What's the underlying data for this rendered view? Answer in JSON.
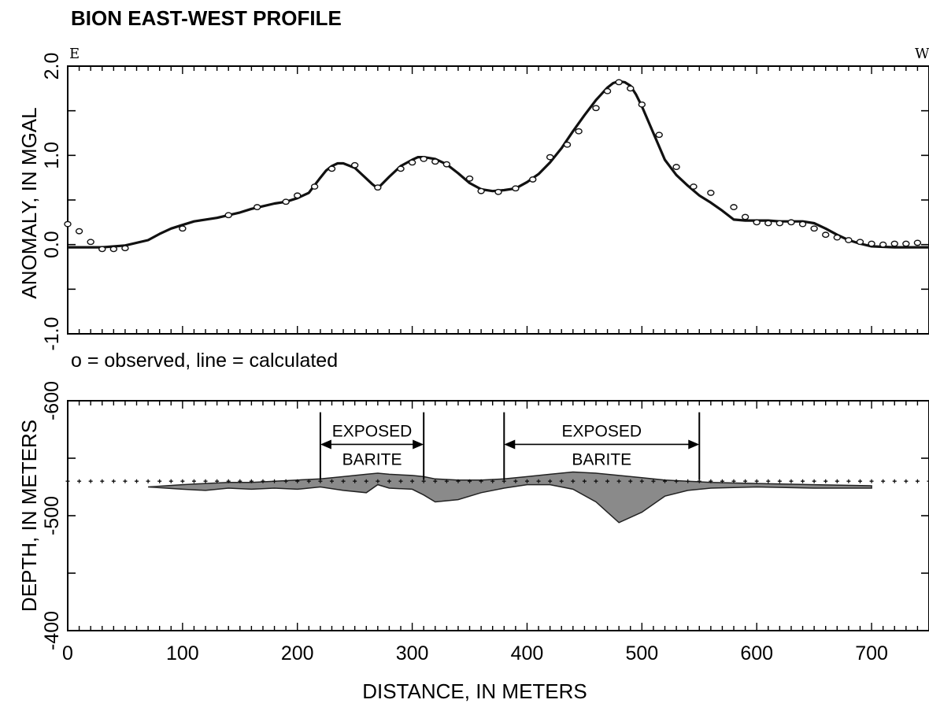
{
  "chart_data": [
    {
      "type": "line",
      "title": "BION EAST-WEST PROFILE",
      "direction_left": "E",
      "direction_right": "W",
      "ylabel": "ANOMALY, IN MGAL",
      "ylim": [
        -1.0,
        2.0
      ],
      "xlim": [
        0,
        750
      ],
      "yticks": [
        "-1.0",
        "0.0",
        "1.0",
        "2.0"
      ],
      "yticks_values": [
        -1.0,
        0.0,
        1.0,
        2.0
      ],
      "legend_note": "o = observed, line = calculated",
      "series": [
        {
          "name": "calculated",
          "x": [
            0,
            30,
            50,
            70,
            80,
            90,
            100,
            110,
            120,
            130,
            140,
            150,
            160,
            170,
            180,
            190,
            200,
            210,
            220,
            225,
            230,
            235,
            240,
            250,
            255,
            260,
            265,
            270,
            280,
            290,
            300,
            305,
            310,
            320,
            330,
            340,
            350,
            360,
            370,
            380,
            390,
            400,
            410,
            420,
            430,
            440,
            450,
            460,
            470,
            475,
            480,
            485,
            490,
            495,
            500,
            510,
            520,
            530,
            540,
            550,
            560,
            570,
            580,
            590,
            600,
            610,
            620,
            630,
            640,
            650,
            660,
            670,
            680,
            690,
            700,
            720,
            750
          ],
          "values": [
            -0.03,
            -0.03,
            -0.01,
            0.05,
            0.12,
            0.18,
            0.22,
            0.26,
            0.28,
            0.3,
            0.33,
            0.36,
            0.4,
            0.43,
            0.46,
            0.48,
            0.52,
            0.58,
            0.75,
            0.83,
            0.88,
            0.91,
            0.91,
            0.86,
            0.8,
            0.74,
            0.68,
            0.63,
            0.76,
            0.88,
            0.95,
            0.98,
            0.98,
            0.96,
            0.9,
            0.8,
            0.69,
            0.62,
            0.6,
            0.61,
            0.63,
            0.7,
            0.79,
            0.92,
            1.08,
            1.27,
            1.45,
            1.62,
            1.76,
            1.81,
            1.83,
            1.82,
            1.78,
            1.68,
            1.55,
            1.25,
            0.95,
            0.78,
            0.66,
            0.55,
            0.47,
            0.38,
            0.28,
            0.27,
            0.27,
            0.27,
            0.26,
            0.26,
            0.26,
            0.24,
            0.18,
            0.11,
            0.05,
            0.01,
            -0.02,
            -0.03,
            -0.03
          ]
        },
        {
          "name": "observed",
          "x": [
            0,
            10,
            20,
            30,
            40,
            50,
            100,
            140,
            165,
            190,
            200,
            215,
            230,
            250,
            270,
            290,
            300,
            310,
            320,
            330,
            350,
            360,
            375,
            390,
            405,
            420,
            435,
            445,
            460,
            470,
            480,
            490,
            500,
            515,
            530,
            545,
            560,
            580,
            590,
            600,
            610,
            620,
            630,
            640,
            650,
            660,
            670,
            680,
            690,
            700,
            710,
            720,
            730,
            740
          ],
          "values": [
            0.23,
            0.15,
            0.03,
            -0.05,
            -0.05,
            -0.04,
            0.18,
            0.33,
            0.42,
            0.48,
            0.55,
            0.65,
            0.85,
            0.89,
            0.64,
            0.85,
            0.92,
            0.96,
            0.93,
            0.9,
            0.74,
            0.6,
            0.59,
            0.63,
            0.73,
            0.98,
            1.12,
            1.27,
            1.53,
            1.72,
            1.82,
            1.75,
            1.57,
            1.23,
            0.87,
            0.65,
            0.58,
            0.42,
            0.31,
            0.25,
            0.24,
            0.24,
            0.25,
            0.23,
            0.18,
            0.11,
            0.08,
            0.05,
            0.03,
            0.01,
            0.0,
            0.01,
            0.01,
            0.02
          ]
        }
      ]
    },
    {
      "type": "area",
      "ylabel": "DEPTH, IN METERS",
      "xlabel": "DISTANCE, IN METERS",
      "ylim": [
        400,
        600
      ],
      "xlim": [
        0,
        750
      ],
      "xticks": [
        "0",
        "100",
        "200",
        "300",
        "400",
        "500",
        "600",
        "700"
      ],
      "xticks_values": [
        0,
        100,
        200,
        300,
        400,
        500,
        600,
        700
      ],
      "yticks": [
        "-400",
        "-500",
        "-600"
      ],
      "yticks_values": [
        400,
        500,
        600
      ],
      "surface_depth": 530,
      "annotations": [
        {
          "line1": "EXPOSED",
          "line2": "BARITE",
          "x_start": 220,
          "x_end": 310
        },
        {
          "line1": "EXPOSED",
          "line2": "BARITE",
          "x_start": 380,
          "x_end": 550
        }
      ],
      "series": [
        {
          "name": "",
          "x": [
            70,
            100,
            120,
            140,
            160,
            180,
            200,
            220,
            240,
            260,
            270,
            280,
            300,
            310,
            320,
            340,
            360,
            380,
            400,
            420,
            440,
            460,
            480,
            500,
            520,
            540,
            560,
            600,
            650,
            700
          ],
          "top": [
            525,
            527,
            528,
            529,
            529,
            530,
            531,
            532,
            534,
            536,
            537,
            536,
            535,
            534,
            532,
            531,
            531,
            532,
            534,
            536,
            538,
            537,
            535,
            533,
            531,
            530,
            529,
            528,
            527,
            526
          ],
          "bottom": [
            525,
            523,
            522,
            524,
            523,
            524,
            523,
            525,
            522,
            520,
            527,
            524,
            523,
            518,
            512,
            514,
            520,
            524,
            527,
            527,
            523,
            512,
            494,
            503,
            517,
            522,
            524,
            525,
            524,
            524
          ]
        }
      ]
    }
  ]
}
